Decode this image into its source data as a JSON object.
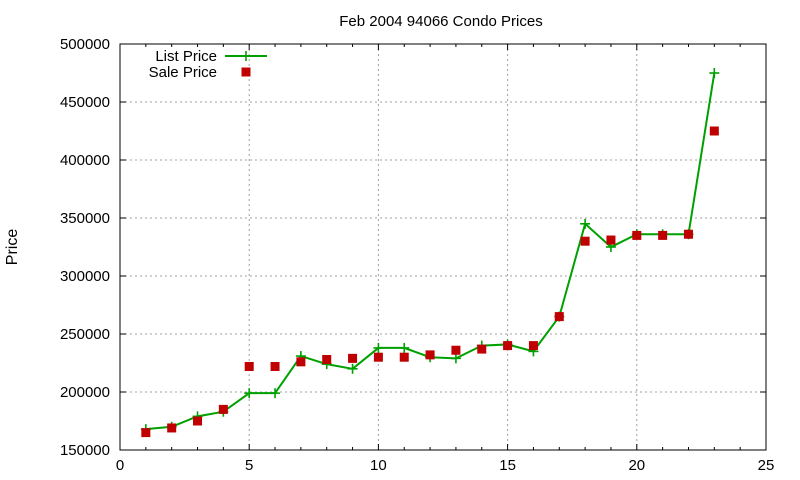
{
  "chart_data": {
    "type": "line",
    "title": "Feb 2004 94066 Condo Prices",
    "xlabel": "",
    "ylabel": "Price",
    "xlim": [
      0,
      25
    ],
    "ylim": [
      150000,
      500000
    ],
    "xticks": [
      0,
      5,
      10,
      15,
      20,
      25
    ],
    "yticks": [
      150000,
      200000,
      250000,
      300000,
      350000,
      400000,
      450000,
      500000
    ],
    "grid": true,
    "legend_position": "top-left",
    "series": [
      {
        "name": "List Price",
        "style": "line+cross",
        "color": "#00a000",
        "points": [
          [
            1,
            168000
          ],
          [
            2,
            170000
          ],
          [
            3,
            179000
          ],
          [
            4,
            183000
          ],
          [
            5,
            199000
          ],
          [
            6,
            199000
          ],
          [
            7,
            231000
          ],
          [
            8,
            224000
          ],
          [
            9,
            220000
          ],
          [
            10,
            238000
          ],
          [
            11,
            238000
          ],
          [
            12,
            230000
          ],
          [
            13,
            229000
          ],
          [
            14,
            240000
          ],
          [
            15,
            241000
          ],
          [
            16,
            235000
          ],
          [
            17,
            265000
          ],
          [
            18,
            345000
          ],
          [
            19,
            325000
          ],
          [
            20,
            336000
          ],
          [
            21,
            336000
          ],
          [
            22,
            336000
          ],
          [
            23,
            475000
          ]
        ]
      },
      {
        "name": "Sale Price",
        "style": "square",
        "color": "#c00000",
        "points": [
          [
            1,
            165000
          ],
          [
            2,
            169000
          ],
          [
            3,
            175000
          ],
          [
            4,
            185000
          ],
          [
            5,
            222000
          ],
          [
            6,
            222000
          ],
          [
            7,
            226000
          ],
          [
            8,
            228000
          ],
          [
            9,
            229000
          ],
          [
            10,
            230000
          ],
          [
            11,
            230000
          ],
          [
            12,
            232000
          ],
          [
            13,
            236000
          ],
          [
            14,
            237000
          ],
          [
            15,
            240000
          ],
          [
            16,
            240000
          ],
          [
            17,
            265000
          ],
          [
            18,
            330000
          ],
          [
            19,
            331000
          ],
          [
            20,
            335000
          ],
          [
            21,
            335000
          ],
          [
            22,
            336000
          ],
          [
            23,
            425000
          ]
        ]
      }
    ]
  }
}
